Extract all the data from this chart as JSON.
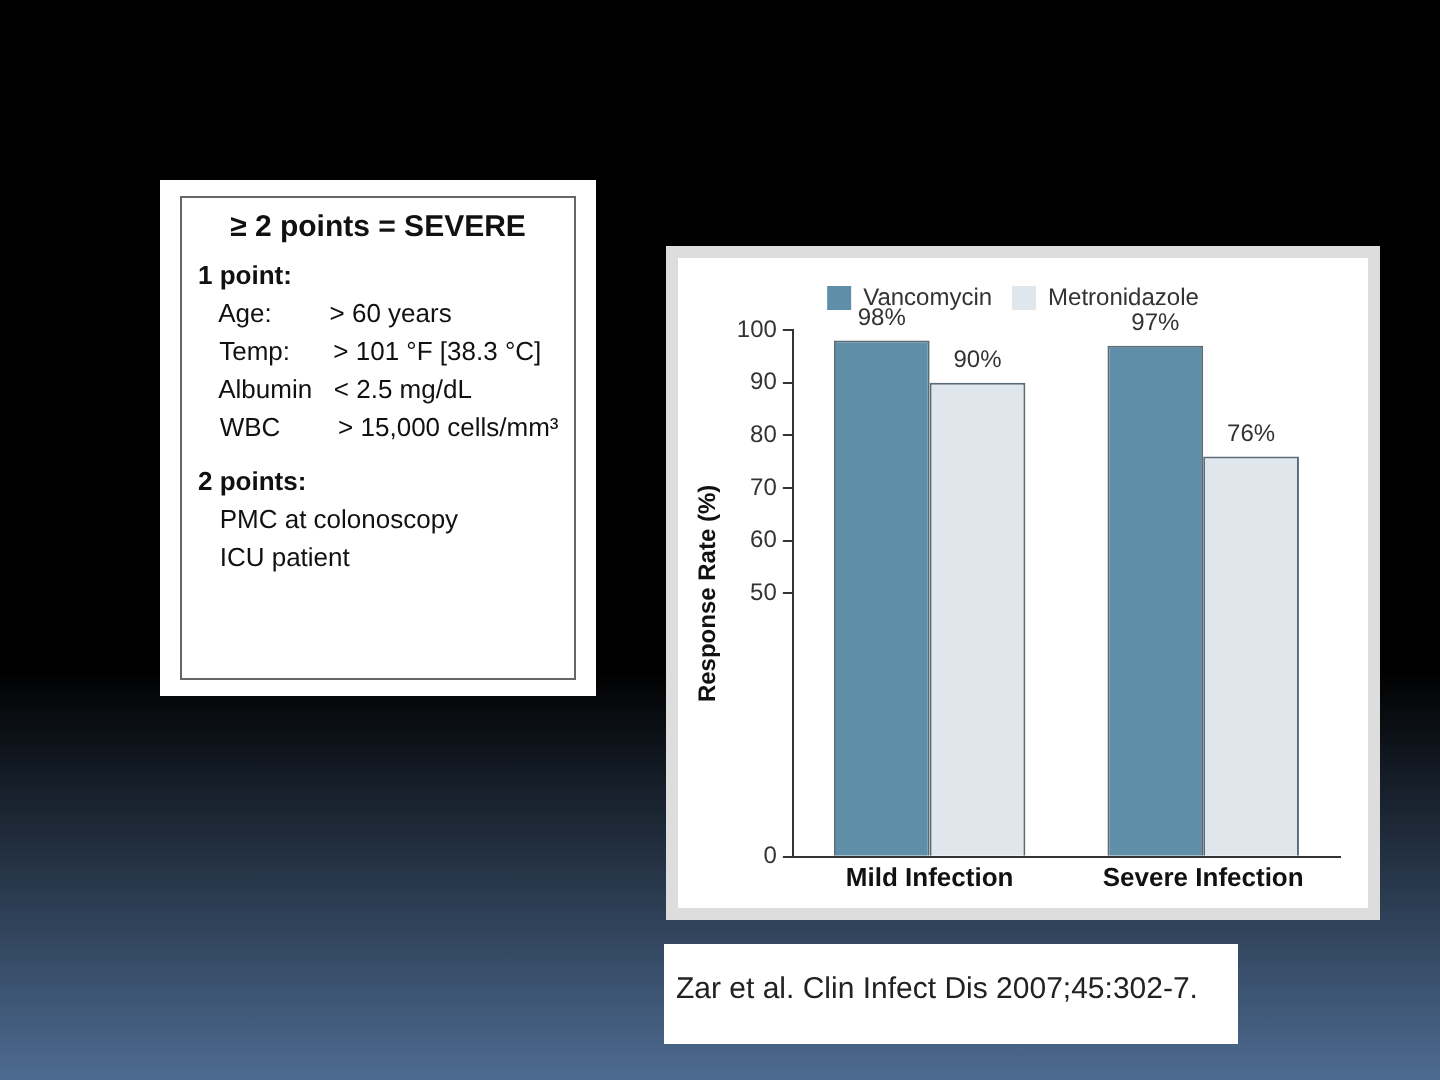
{
  "chart_data": [
    {
      "type": "other",
      "title": "≥ 2 points = SEVERE",
      "annotations": [
        "1 point:",
        "   Age:        > 60 years",
        "   Temp:      > 101 °F [38.3 °C]",
        "   Albumin   < 2.5 mg/dL",
        "   WBC        > 15,000 cells/mm³",
        "2 points:",
        "   PMC at colonoscopy",
        "   ICU patient"
      ]
    },
    {
      "type": "bar",
      "categories": [
        "Mild Infection",
        "Severe Infection"
      ],
      "ylabel": "Response Rate (%)",
      "ylim": [
        0,
        100
      ],
      "yticks": [
        0,
        50,
        60,
        70,
        80,
        90,
        100
      ],
      "grid": false,
      "legend": "top",
      "series": [
        {
          "name": "Vancomycin",
          "color": "#5f8ea8",
          "values": [
            98,
            97
          ],
          "value_labels": [
            "98%",
            "97%"
          ]
        },
        {
          "name": "Metronidazole",
          "color": "#dfe7ed",
          "values": [
            90,
            76
          ],
          "value_labels": [
            "90%",
            "76%"
          ]
        }
      ],
      "annotations": [
        "Zar et al. Clin Infect Dis 2007;45:302-7."
      ]
    }
  ]
}
